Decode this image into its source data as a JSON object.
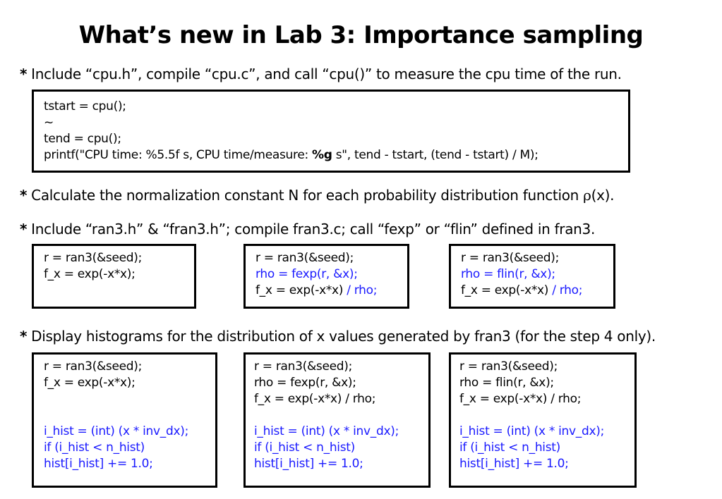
{
  "title": "What’s new in Lab 3: Importance sampling",
  "bullets": {
    "b1": {
      "star": "*",
      "text": "Include “cpu.h”, compile “cpu.c”, and call “cpu()” to measure the cpu time of the run."
    },
    "b2": {
      "star": "*",
      "text_before": "Calculate the normalization constant N for each probability distribution function ",
      "rho": "ρ",
      "text_after": "(x)."
    },
    "b3": {
      "star": "*",
      "text": "Include “ran3.h” & “fran3.h”; compile fran3.c; call “fexp” or “flin” defined in fran3."
    },
    "b4": {
      "star": "*",
      "text": "Display histograms for the distribution of x values generated by fran3 (for the step 4 only)."
    }
  },
  "cpu_box": {
    "line1": "tstart = cpu();",
    "line2": "~",
    "line3": "tend = cpu();",
    "line4_a": "printf(\"CPU time: %5.5f s, CPU time/measure: ",
    "line4_bold": "%g",
    "line4_b": " s\", tend - tstart, (tend - tstart) / M);"
  },
  "code_row1": {
    "box1": {
      "line1": "r = ran3(&seed);",
      "line2": "f_x = exp(-x*x);"
    },
    "box2": {
      "line1": "r = ran3(&seed);",
      "line2": "rho = fexp(r, &x);",
      "line3_a": "f_x = exp(-x*x) ",
      "line3_b": "/ rho;"
    },
    "box3": {
      "line1": "r = ran3(&seed);",
      "line2": "rho = flin(r, &x);",
      "line3_a": "f_x = exp(-x*x) ",
      "line3_b": "/ rho;"
    }
  },
  "code_row2": {
    "box1": {
      "line1": "r = ran3(&seed);",
      "line2": "f_x = exp(-x*x);",
      "hist1": "i_hist = (int) (x * inv_dx);",
      "hist2": "if (i_hist < n_hist)",
      "hist3": "hist[i_hist] += 1.0;"
    },
    "box2": {
      "line1": "r = ran3(&seed);",
      "line2": "rho = fexp(r, &x);",
      "line3": "f_x = exp(-x*x) / rho;",
      "hist1": "i_hist = (int) (x * inv_dx);",
      "hist2": "if (i_hist < n_hist)",
      "hist3": "hist[i_hist] += 1.0;"
    },
    "box3": {
      "line1": "r = ran3(&seed);",
      "line2": "rho = flin(r, &x);",
      "line3": "f_x = exp(-x*x) / rho;",
      "hist1": "i_hist = (int) (x * inv_dx);",
      "hist2": "if (i_hist < n_hist)",
      "hist3": "hist[i_hist] += 1.0;"
    }
  },
  "colors": {
    "highlight": "#1a1aff",
    "text": "#000000",
    "border": "#000000"
  }
}
